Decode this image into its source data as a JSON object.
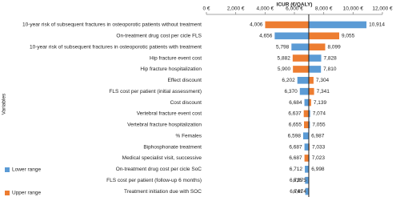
{
  "chart_data": {
    "type": "tornado",
    "title": "ICUR (€/QALY)",
    "y_axis_label": "Variables",
    "categories": [
      "10-year risk of subsequent fractures in osteoporotic patients without treatment",
      "On-treatment drug cost per cicle FLS",
      "10-year risk of subsequent fractures in osteoporotic patients with treatment",
      "Hip fracture event cost",
      "Hip fracture hospitalization",
      "Effect discount",
      "FLS cost per patient (initial assessment)",
      "Cost discount",
      "Vertebral fracture event cost",
      "Vertebral fracture hospitalization",
      "% Females",
      "Biphosphonate treatment",
      "Medical specialist visit, successive",
      "On-treatment drug cost per cicle SoC",
      "FLS cost per patient (follow-up 6 months)",
      "Treatment initiation due with SOC"
    ],
    "base": 6980,
    "series": [
      {
        "name": "Lower range",
        "color": "#5b9bd5",
        "values": [
          10914,
          4656,
          5798,
          7828,
          7810,
          6202,
          6370,
          6684,
          7074,
          7055,
          6598,
          6687,
          7023,
          6712,
          6725,
          6741
        ],
        "value_labels": [
          "10,914",
          "4,656",
          "5,798",
          "7,828",
          "7,810",
          "6,202",
          "6,370",
          "6,684",
          "7,074",
          "7,055",
          "6,598",
          "6,687",
          "7,023",
          "6,712",
          "6,725",
          "6,741"
        ]
      },
      {
        "name": "Upper range",
        "color": "#ed7d31",
        "values": [
          4006,
          9055,
          8099,
          5882,
          5900,
          7304,
          7341,
          7139,
          6637,
          6655,
          6987,
          7033,
          6687,
          6998,
          6975,
          6974
        ],
        "value_labels": [
          "4,006",
          "9,055",
          "8,099",
          "5,882",
          "5,900",
          "7,304",
          "7,341",
          "7,139",
          "6,637",
          "6,655",
          "6,987",
          "7,033",
          "6,687",
          "6,998",
          "6,975",
          "6,974"
        ]
      }
    ],
    "xlim": [
      0,
      12000
    ],
    "xticks": [
      {
        "value": 0,
        "label": "0 €"
      },
      {
        "value": 2000,
        "label": "2,000 €"
      },
      {
        "value": 4000,
        "label": "4,000 €"
      },
      {
        "value": 6000,
        "label": "6,000 €"
      },
      {
        "value": 8000,
        "label": "8,000 €"
      },
      {
        "value": 10000,
        "label": "10,000 €"
      },
      {
        "value": 12000,
        "label": "12,000 €"
      }
    ],
    "legend_position": "bottom-left"
  }
}
